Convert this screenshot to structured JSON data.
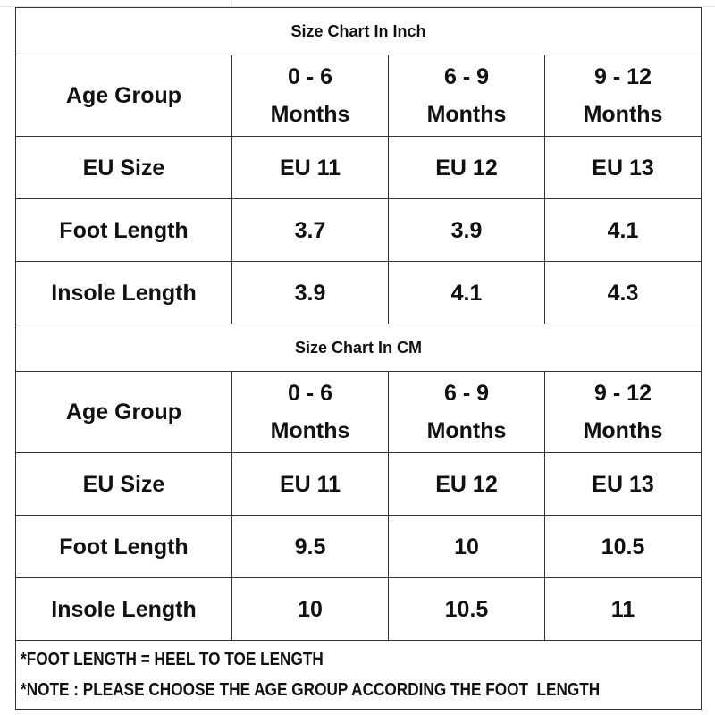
{
  "sections": [
    {
      "title": "Size Chart In Inch",
      "age_label": "Age Group",
      "ages": [
        [
          "0 - 6",
          "Months"
        ],
        [
          "6 - 9",
          "Months"
        ],
        [
          "9 - 12",
          "Months"
        ]
      ],
      "rows": [
        {
          "label": "EU Size",
          "values": [
            "EU 11",
            "EU 12",
            "EU 13"
          ]
        },
        {
          "label": "Foot Length",
          "values": [
            "3.7",
            "3.9",
            "4.1"
          ]
        },
        {
          "label": "Insole Length",
          "values": [
            "3.9",
            "4.1",
            "4.3"
          ]
        }
      ]
    },
    {
      "title": "Size Chart In CM",
      "age_label": "Age Group",
      "ages": [
        [
          "0 - 6",
          "Months"
        ],
        [
          "6 - 9",
          "Months"
        ],
        [
          "9 - 12",
          "Months"
        ]
      ],
      "rows": [
        {
          "label": "EU Size",
          "values": [
            "EU 11",
            "EU 12",
            "EU 13"
          ]
        },
        {
          "label": "Foot Length",
          "values": [
            "9.5",
            "10",
            "10.5"
          ]
        },
        {
          "label": "Insole Length",
          "values": [
            "10",
            "10.5",
            "11"
          ]
        }
      ]
    }
  ],
  "notes": [
    "*FOOT LENGTH = HEEL TO TOE LENGTH",
    "*NOTE : PLEASE CHOOSE THE AGE GROUP ACCORDING THE FOOT  LENGTH"
  ]
}
